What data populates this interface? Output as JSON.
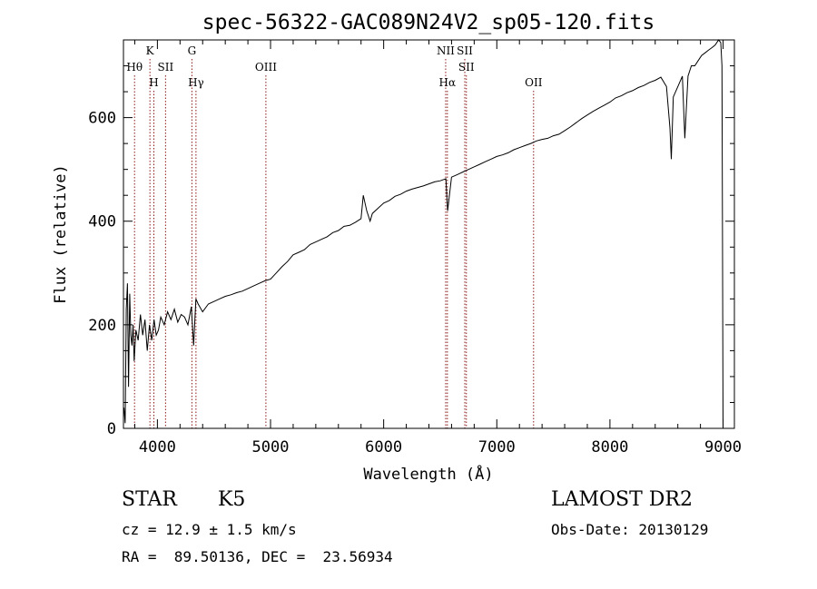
{
  "chart_data": {
    "type": "line",
    "title": "spec-56322-GAC089N24V2_sp05-120.fits",
    "xlabel": "Wavelength (Å)",
    "ylabel": "Flux (relative)",
    "xlim": [
      3700,
      9100
    ],
    "ylim": [
      0,
      750
    ],
    "xticks": [
      4000,
      5000,
      6000,
      7000,
      8000,
      9000
    ],
    "yticks": [
      0,
      200,
      400,
      600
    ],
    "x_minor_step": 200,
    "y_minor_step": 50,
    "grid": false,
    "line_color": "#000000",
    "marker_color": "#8b1a1a",
    "series": [
      {
        "x": [
          3705,
          3715,
          3725,
          3735,
          3745,
          3755,
          3765,
          3775,
          3785,
          3795,
          3810,
          3830,
          3850,
          3870,
          3890,
          3910,
          3930,
          3950,
          3970,
          3990,
          4010,
          4030,
          4060,
          4090,
          4120,
          4150,
          4180,
          4210,
          4240,
          4270,
          4300,
          4320,
          4340,
          4360,
          4400,
          4450,
          4500,
          4550,
          4600,
          4650,
          4700,
          4750,
          4800,
          4850,
          4900,
          4950,
          5000,
          5050,
          5100,
          5150,
          5200,
          5250,
          5300,
          5350,
          5400,
          5450,
          5500,
          5550,
          5600,
          5650,
          5700,
          5750,
          5800,
          5820,
          5850,
          5880,
          5900,
          5950,
          6000,
          6050,
          6100,
          6150,
          6200,
          6250,
          6300,
          6350,
          6400,
          6450,
          6500,
          6550,
          6565,
          6600,
          6650,
          6700,
          6750,
          6800,
          6850,
          6900,
          6950,
          7000,
          7050,
          7100,
          7150,
          7200,
          7250,
          7300,
          7350,
          7400,
          7450,
          7500,
          7550,
          7600,
          7650,
          7700,
          7750,
          7800,
          7850,
          7900,
          7950,
          8000,
          8050,
          8100,
          8150,
          8200,
          8250,
          8300,
          8350,
          8400,
          8450,
          8500,
          8530,
          8542,
          8560,
          8600,
          8640,
          8662,
          8690,
          8720,
          8750,
          8780,
          8810,
          8840,
          8870,
          8900,
          8930,
          8960,
          8980,
          8990,
          8995,
          9000
        ],
        "values": [
          40,
          10,
          230,
          280,
          80,
          260,
          180,
          160,
          200,
          130,
          190,
          170,
          220,
          180,
          210,
          150,
          200,
          170,
          210,
          180,
          190,
          215,
          200,
          225,
          210,
          230,
          205,
          220,
          215,
          200,
          235,
          160,
          250,
          240,
          225,
          240,
          245,
          250,
          255,
          258,
          262,
          265,
          270,
          275,
          280,
          285,
          288,
          300,
          312,
          322,
          335,
          340,
          345,
          355,
          360,
          365,
          370,
          378,
          382,
          390,
          392,
          398,
          405,
          450,
          420,
          400,
          415,
          425,
          435,
          440,
          448,
          452,
          458,
          462,
          465,
          468,
          472,
          476,
          478,
          482,
          420,
          485,
          490,
          495,
          500,
          505,
          510,
          515,
          520,
          525,
          528,
          532,
          538,
          542,
          546,
          550,
          555,
          558,
          560,
          565,
          568,
          575,
          582,
          590,
          598,
          605,
          612,
          618,
          624,
          630,
          638,
          642,
          648,
          652,
          658,
          662,
          668,
          672,
          678,
          660,
          580,
          520,
          640,
          660,
          680,
          560,
          680,
          700,
          700,
          710,
          720,
          725,
          730,
          735,
          740,
          750,
          745,
          700,
          370,
          0
        ]
      }
    ],
    "lines": [
      {
        "label": "Hθ",
        "x": 3798,
        "row": 1
      },
      {
        "label": "K",
        "x": 3934,
        "row": 0
      },
      {
        "label": "H",
        "x": 3969,
        "row": 2
      },
      {
        "label": "SII",
        "x": 4072,
        "row": 1
      },
      {
        "label": "G",
        "x": 4305,
        "row": 0
      },
      {
        "label": "Hγ",
        "x": 4341,
        "row": 2
      },
      {
        "label": "OIII",
        "x": 4959,
        "row": 1
      },
      {
        "label": "NII",
        "x": 6548,
        "row": 0
      },
      {
        "label": "Hα",
        "x": 6563,
        "row": 2
      },
      {
        "label": "SII",
        "x": 6717,
        "row": 0
      },
      {
        "label": "SII",
        "x": 6731,
        "row": 1
      },
      {
        "label": "OII",
        "x": 7325,
        "row": 2
      }
    ]
  },
  "info": {
    "class": "STAR",
    "subclass": "K5",
    "survey": "LAMOST DR2",
    "cz": "cz = 12.9 ± 1.5 km/s",
    "obsdate": "Obs-Date: 20130129",
    "radec": "RA =  89.50136, DEC =  23.56934"
  }
}
